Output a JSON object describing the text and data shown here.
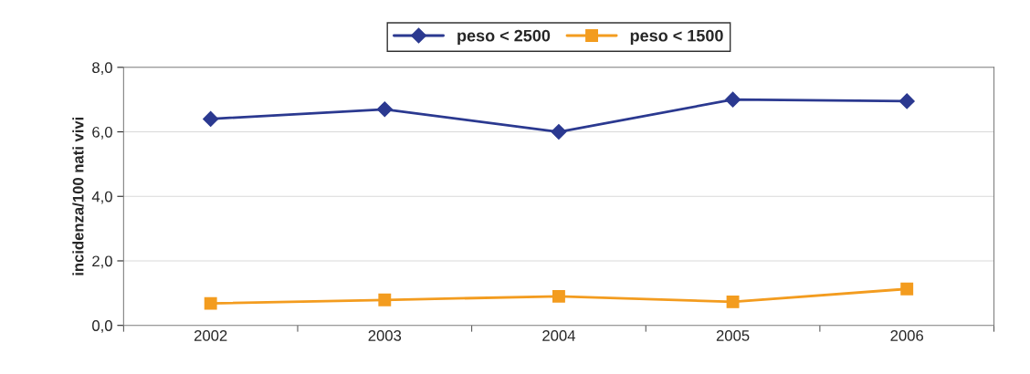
{
  "chart_data": {
    "type": "line",
    "ylabel": "incidenza/100 nati vivi",
    "categories": [
      "2002",
      "2003",
      "2004",
      "2005",
      "2006"
    ],
    "series": [
      {
        "name": "peso < 2500",
        "color": "#2b3990",
        "marker": "diamond",
        "values": [
          6.4,
          6.7,
          6.0,
          7.0,
          6.95
        ]
      },
      {
        "name": "peso < 1500",
        "color": "#f39c1f",
        "marker": "square",
        "values": [
          0.68,
          0.79,
          0.9,
          0.73,
          1.13
        ]
      }
    ],
    "ylim": [
      0,
      8
    ],
    "yticks": [
      {
        "value": 0,
        "label": "0,0"
      },
      {
        "value": 2,
        "label": "2,0"
      },
      {
        "value": 4,
        "label": "4,0"
      },
      {
        "value": 6,
        "label": "6,0"
      },
      {
        "value": 8,
        "label": "8,0"
      }
    ],
    "grid": "y",
    "legend": "top",
    "line_style": "solid"
  }
}
